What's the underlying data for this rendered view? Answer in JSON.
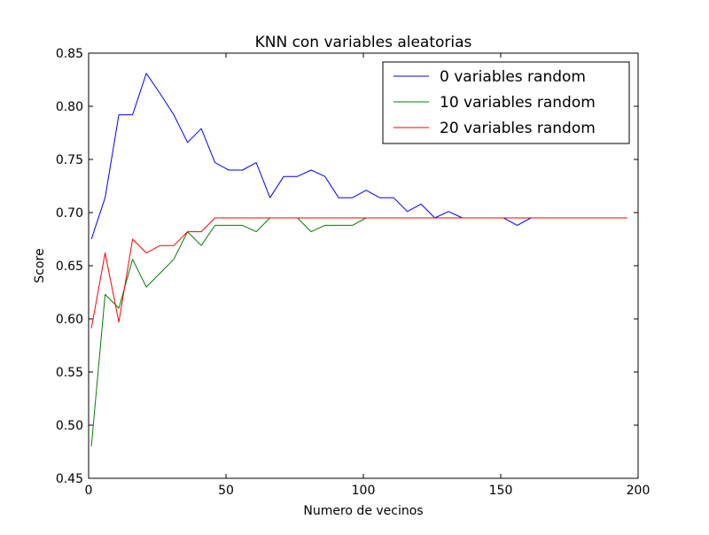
{
  "chart_data": {
    "type": "line",
    "title": "KNN con variables aleatorias",
    "xlabel": "Numero de vecinos",
    "ylabel": "Score",
    "xlim": [
      0,
      200
    ],
    "ylim": [
      0.45,
      0.85
    ],
    "x_ticks": [
      "0",
      "50",
      "100",
      "150",
      "200"
    ],
    "y_ticks": [
      "0.45",
      "0.50",
      "0.55",
      "0.60",
      "0.65",
      "0.70",
      "0.75",
      "0.80",
      "0.85"
    ],
    "grid": false,
    "legend_position": "top-right",
    "x": [
      1,
      6,
      11,
      16,
      21,
      26,
      31,
      36,
      41,
      46,
      51,
      56,
      61,
      66,
      71,
      76,
      81,
      86,
      91,
      96,
      101,
      106,
      111,
      116,
      121,
      126,
      131,
      136,
      141,
      146,
      151,
      156,
      161,
      166,
      171,
      176,
      181,
      186,
      191,
      196
    ],
    "series": [
      {
        "name": "0 variables random",
        "color": "#0000ff",
        "values": [
          0.675,
          0.714,
          0.792,
          0.792,
          0.831,
          0.812,
          0.792,
          0.766,
          0.779,
          0.747,
          0.74,
          0.74,
          0.747,
          0.714,
          0.734,
          0.734,
          0.74,
          0.734,
          0.714,
          0.714,
          0.721,
          0.714,
          0.714,
          0.701,
          0.708,
          0.695,
          0.701,
          0.695,
          0.695,
          0.695,
          0.695,
          0.688,
          0.695,
          0.695,
          0.695,
          0.695,
          0.695,
          0.695,
          0.695,
          0.695
        ]
      },
      {
        "name": "10 variables random",
        "color": "#008000",
        "values": [
          0.48,
          0.623,
          0.61,
          0.656,
          0.63,
          0.643,
          0.656,
          0.682,
          0.669,
          0.688,
          0.688,
          0.688,
          0.682,
          0.695,
          0.695,
          0.695,
          0.682,
          0.688,
          0.688,
          0.688,
          0.695,
          0.695,
          0.695,
          0.695,
          0.695,
          0.695,
          0.695,
          0.695,
          0.695,
          0.695,
          0.695,
          0.695,
          0.695,
          0.695,
          0.695,
          0.695,
          0.695,
          0.695,
          0.695,
          0.695
        ]
      },
      {
        "name": "20 variables random",
        "color": "#ff0000",
        "values": [
          0.591,
          0.662,
          0.597,
          0.675,
          0.662,
          0.669,
          0.669,
          0.682,
          0.682,
          0.695,
          0.695,
          0.695,
          0.695,
          0.695,
          0.695,
          0.695,
          0.695,
          0.695,
          0.695,
          0.695,
          0.695,
          0.695,
          0.695,
          0.695,
          0.695,
          0.695,
          0.695,
          0.695,
          0.695,
          0.695,
          0.695,
          0.695,
          0.695,
          0.695,
          0.695,
          0.695,
          0.695,
          0.695,
          0.695,
          0.695
        ]
      }
    ]
  }
}
